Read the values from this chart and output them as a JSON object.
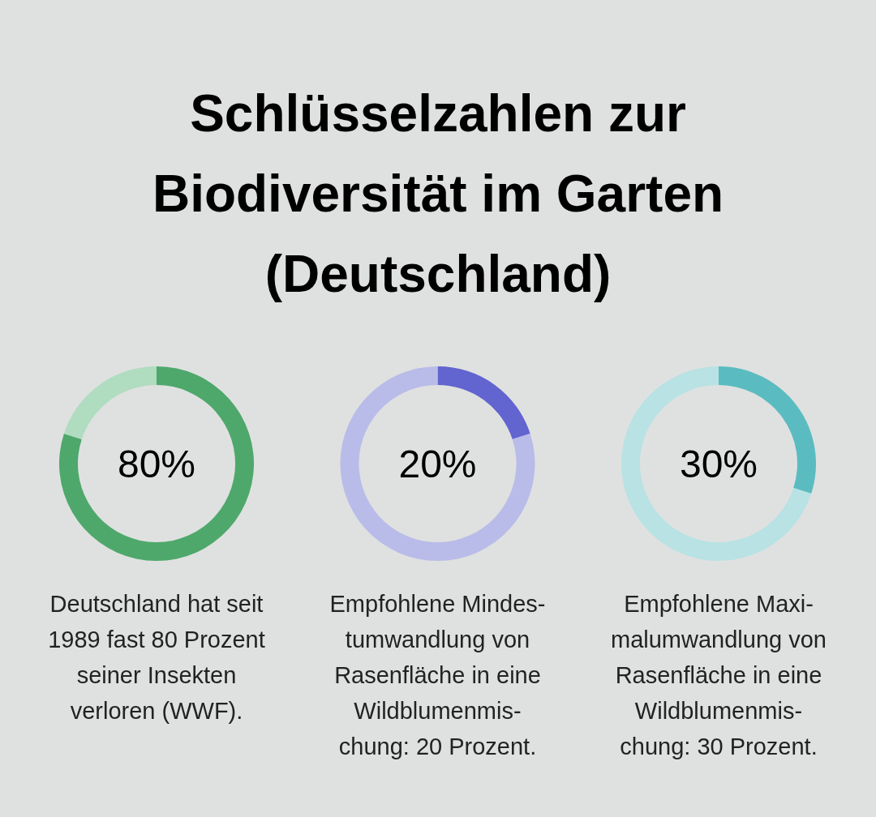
{
  "chart_data": [
    {
      "type": "donut",
      "title": "Schlüsselzahlen zur\nBiodiversität im Garten\n(Deutschland)",
      "categories": [
        null,
        null
      ],
      "values": [
        80,
        20
      ],
      "colors": [
        "#4ea86b",
        "#b0dcc0"
      ],
      "annotations": [
        "80%",
        "Deutschland hat seit\n1989 fast 80 Prozent\nseiner Insekten\nverloren (WWF)."
      ]
    },
    {
      "type": "donut",
      "categories": [
        null,
        null
      ],
      "values": [
        20,
        80
      ],
      "colors": [
        "#6264d0",
        "#b9bce9"
      ],
      "annotations": [
        "20%",
        "Empfohlene Mindes-\ntumwandlung von\nRasenfläche in eine\nWildblumenmis-\nchung: 20 Prozent."
      ]
    },
    {
      "type": "donut",
      "categories": [
        null,
        null
      ],
      "values": [
        30,
        70
      ],
      "colors": [
        "#5abcc0",
        "#b8e2e3"
      ],
      "annotations": [
        "30%",
        "Empfohlene Maxi-\nmalumwandlung von\nRasenfläche in eine\nWildblumenmis-\nchung: 30 Prozent."
      ]
    }
  ]
}
